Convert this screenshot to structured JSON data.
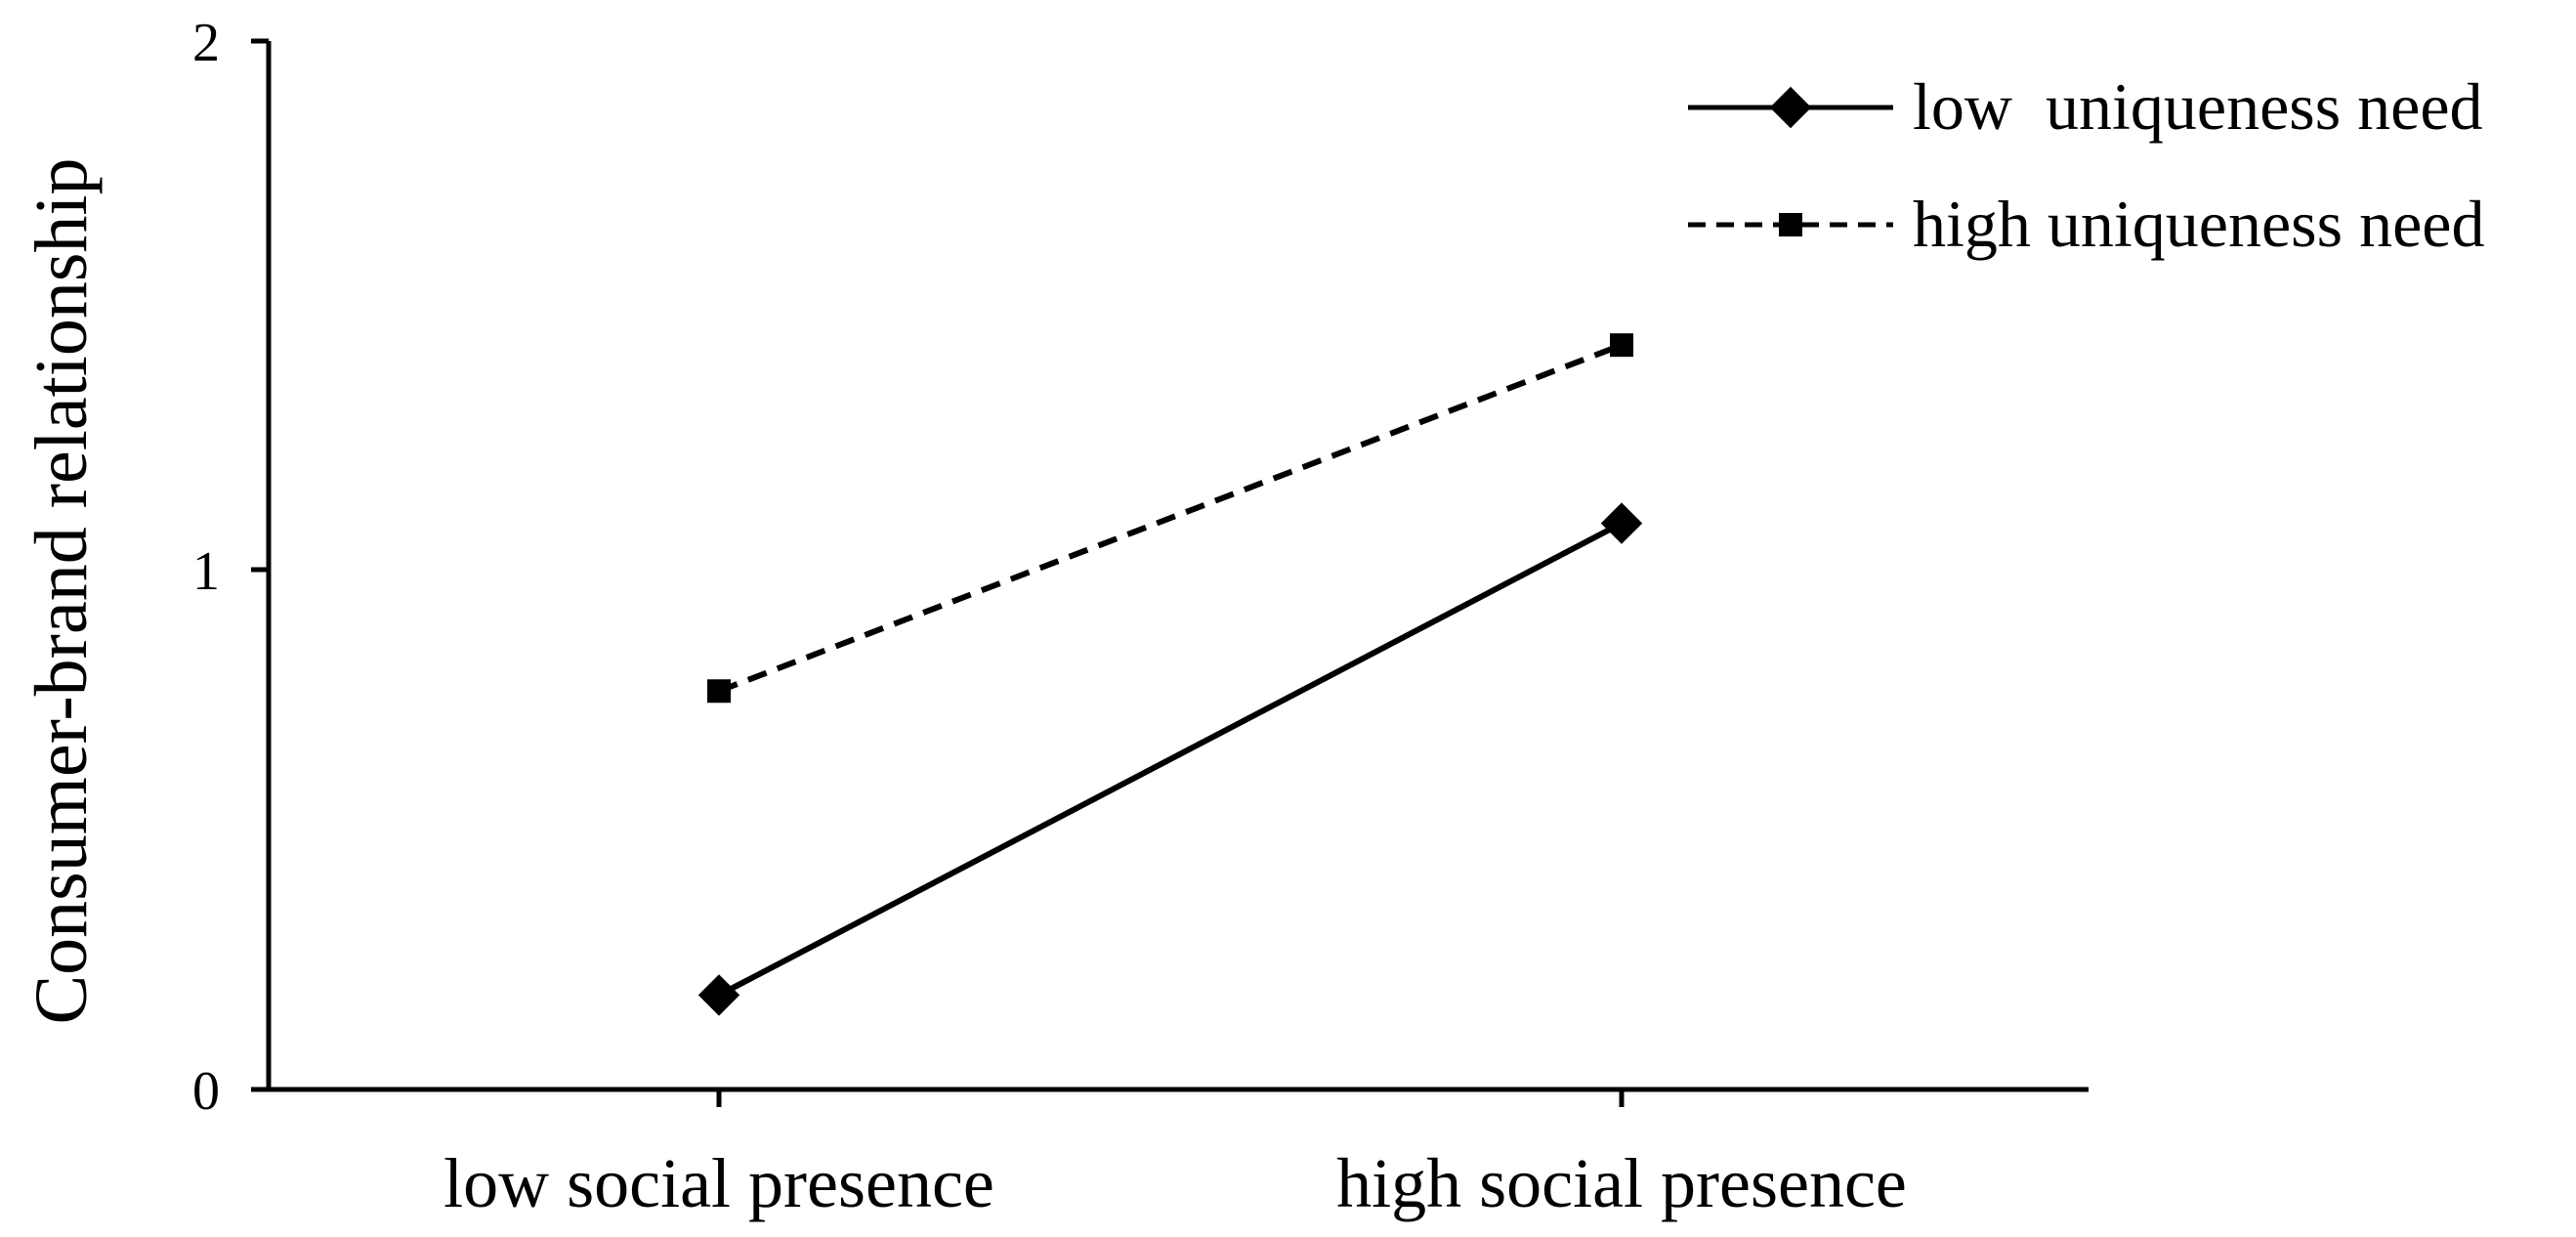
{
  "chart_data": {
    "type": "line",
    "title": "",
    "xlabel": "",
    "ylabel": "Consumer-brand relationship",
    "categories": [
      "low social presence",
      "high social presence"
    ],
    "ylim": [
      0,
      2
    ],
    "yticks": [
      "0",
      "1",
      "2"
    ],
    "grid": false,
    "legend_position": "top-right",
    "series": [
      {
        "name": "low  uniqueness need",
        "values": [
          0.18,
          1.08
        ],
        "line_style": "solid",
        "marker": "diamond",
        "color": "#000000"
      },
      {
        "name": "high uniqueness need",
        "values": [
          0.76,
          1.42
        ],
        "line_style": "dashed",
        "marker": "square",
        "color": "#000000"
      }
    ]
  }
}
